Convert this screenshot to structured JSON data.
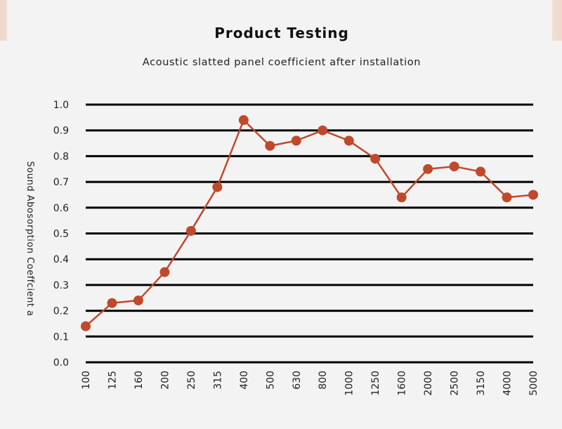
{
  "chart_data": {
    "type": "line",
    "title": "Product Testing",
    "subtitle": "Acoustic slatted panel coefficient after installation",
    "xlabel": "",
    "ylabel": "Sound Abosorption Coeffcient a",
    "categories": [
      "100",
      "125",
      "160",
      "200",
      "250",
      "315",
      "400",
      "500",
      "630",
      "800",
      "1000",
      "1250",
      "1600",
      "2000",
      "2500",
      "3150",
      "4000",
      "5000"
    ],
    "yticks": [
      "0.0",
      "0.1",
      "0.2",
      "0.3",
      "0.4",
      "0.5",
      "0.6",
      "0.7",
      "0.8",
      "0.9",
      "1.0"
    ],
    "ylim": [
      0,
      1.0
    ],
    "grid": true,
    "series": [
      {
        "values": [
          0.14,
          0.23,
          0.24,
          0.35,
          0.51,
          0.68,
          0.94,
          0.84,
          0.86,
          0.9,
          0.86,
          0.79,
          0.64,
          0.75,
          0.76,
          0.74,
          0.64,
          0.65
        ]
      }
    ],
    "line_color": "#c0492b",
    "grid_color": "#000000"
  }
}
